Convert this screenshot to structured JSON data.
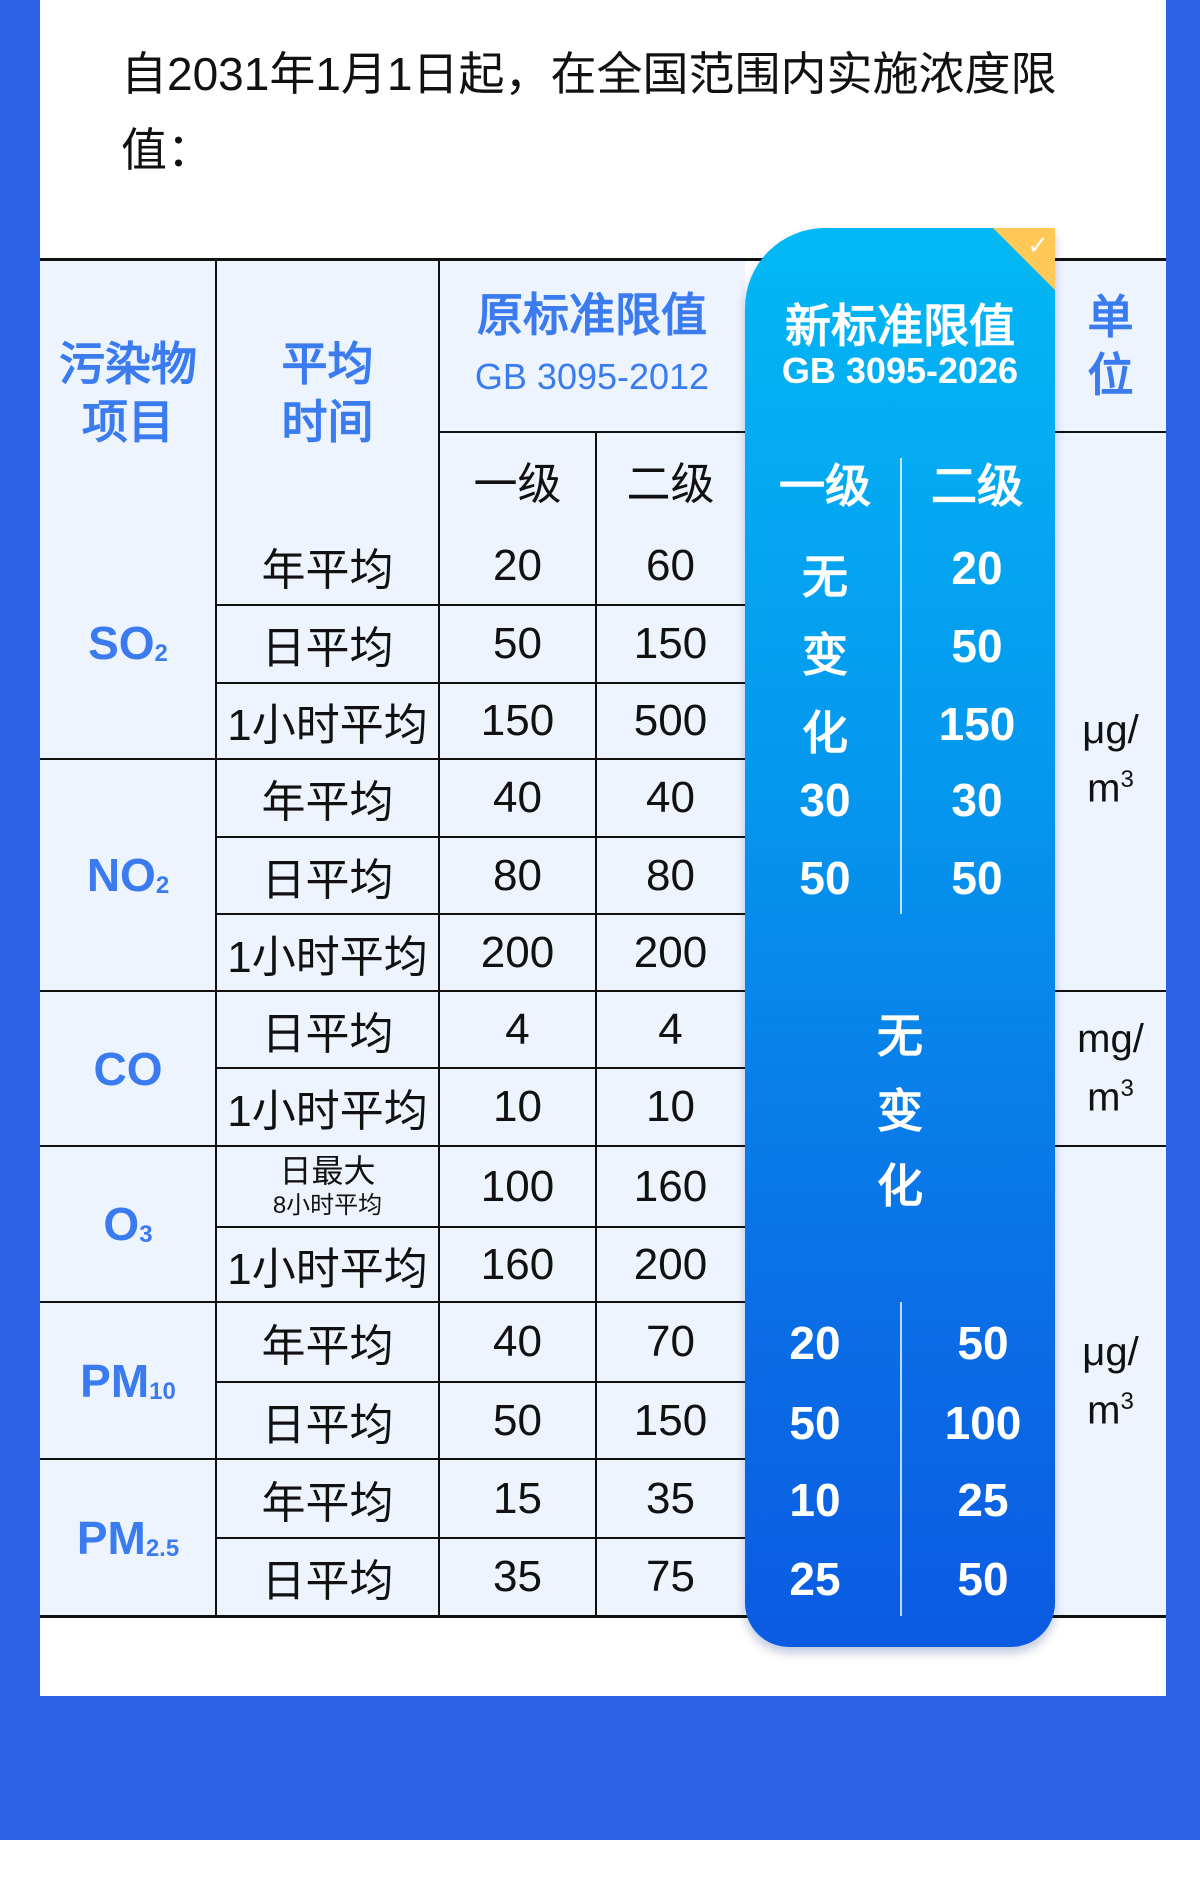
{
  "title": "自2031年1月1日起，在全国范围内实施浓度限值：",
  "header": {
    "pollutant_line1": "污染物",
    "pollutant_line2": "项目",
    "avg_line1": "平均",
    "avg_line2": "时间",
    "old_title": "原标准限值",
    "old_code": "GB 3095-2012",
    "new_title": "新标准限值",
    "new_code": "GB 3095-2026",
    "unit_line1": "单",
    "unit_line2": "位",
    "grade1": "一级",
    "grade2": "二级"
  },
  "badge_icon": "check-icon",
  "pollutants": [
    {
      "name": "SO",
      "sub": "2"
    },
    {
      "name": "NO",
      "sub": "2"
    },
    {
      "name": "CO",
      "sub": ""
    },
    {
      "name": "O",
      "sub": "3"
    },
    {
      "name": "PM",
      "sub": "10"
    },
    {
      "name": "PM",
      "sub": "2.5"
    }
  ],
  "rows": [
    {
      "time": "年平均",
      "old1": "20",
      "old2": "60",
      "new2": "20"
    },
    {
      "time": "日平均",
      "old1": "50",
      "old2": "150",
      "new2": "50"
    },
    {
      "time": "1小时平均",
      "old1": "150",
      "old2": "500",
      "new2": "150"
    },
    {
      "time": "年平均",
      "old1": "40",
      "old2": "40",
      "new1": "30",
      "new2": "30"
    },
    {
      "time": "日平均",
      "old1": "80",
      "old2": "80",
      "new1": "50",
      "new2": "50"
    },
    {
      "time": "1小时平均",
      "old1": "200",
      "old2": "200"
    },
    {
      "time": "日平均",
      "old1": "4",
      "old2": "4"
    },
    {
      "time": "1小时平均",
      "old1": "10",
      "old2": "10"
    },
    {
      "time": "日最大",
      "time_sub": "8小时平均",
      "old1": "100",
      "old2": "160"
    },
    {
      "time": "1小时平均",
      "old1": "160",
      "old2": "200"
    },
    {
      "time": "年平均",
      "old1": "40",
      "old2": "70",
      "new1": "20",
      "new2": "50"
    },
    {
      "time": "日平均",
      "old1": "50",
      "old2": "150",
      "new1": "50",
      "new2": "100"
    },
    {
      "time": "年平均",
      "old1": "15",
      "old2": "35",
      "new1": "10",
      "new2": "25"
    },
    {
      "time": "日平均",
      "old1": "35",
      "old2": "75",
      "new1": "25",
      "new2": "50"
    }
  ],
  "no_change_so2": [
    "无",
    "变",
    "化"
  ],
  "no_change_co_o3": [
    "无",
    "变",
    "化"
  ],
  "units": [
    {
      "top": "μg/",
      "base": "m",
      "sup": "3"
    },
    {
      "top": "mg/",
      "base": "m",
      "sup": "3"
    },
    {
      "top": "μg/",
      "base": "m",
      "sup": "3"
    }
  ],
  "colors": {
    "background": "#2c62e6",
    "header_text": "#3a7bf0",
    "cell_bg": "#eef4fe",
    "panel_top": "#03b8f4",
    "panel_bottom": "#0b5be2",
    "ribbon": "#ffc857"
  }
}
